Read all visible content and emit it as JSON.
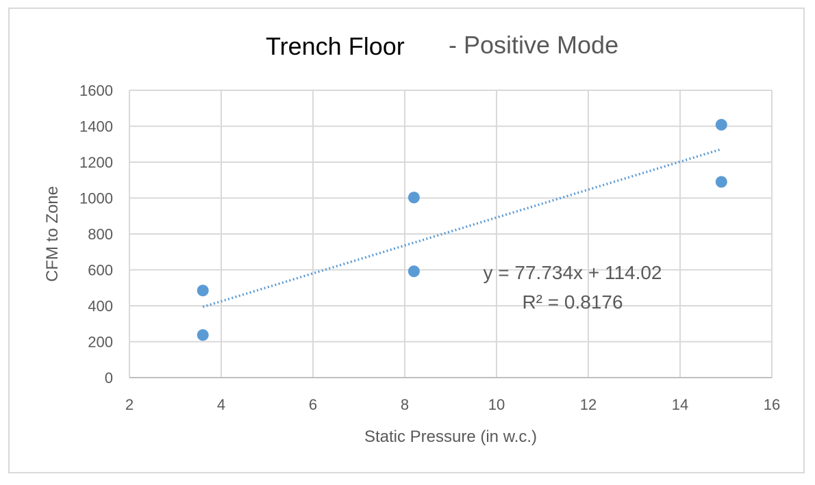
{
  "chart_data": {
    "type": "scatter",
    "title": "Trench Floor",
    "subtitle": "- Positive Mode",
    "xlabel": "Static Pressure (in w.c.)",
    "ylabel": "CFM to Zone",
    "xlim": [
      2,
      16
    ],
    "ylim": [
      0,
      1600
    ],
    "xticks": [
      "2",
      "4",
      "6",
      "8",
      "10",
      "12",
      "14",
      "16"
    ],
    "yticks": [
      "0",
      "200",
      "400",
      "600",
      "800",
      "1000",
      "1200",
      "1400",
      "1600"
    ],
    "grid": true,
    "marker_color": "#5b9bd5",
    "trendline_color": "#5b9bd5",
    "points": [
      {
        "x": 3.6,
        "y": 485
      },
      {
        "x": 3.6,
        "y": 237
      },
      {
        "x": 8.2,
        "y": 1003
      },
      {
        "x": 8.2,
        "y": 592
      },
      {
        "x": 14.9,
        "y": 1408
      },
      {
        "x": 14.9,
        "y": 1090
      }
    ],
    "trendline": {
      "type": "linear",
      "slope": 77.734,
      "intercept": 114.02,
      "x_range": [
        3.6,
        14.9
      ],
      "equation": "y = 77.734x + 114.02",
      "r_squared": "R² = 0.8176"
    }
  }
}
